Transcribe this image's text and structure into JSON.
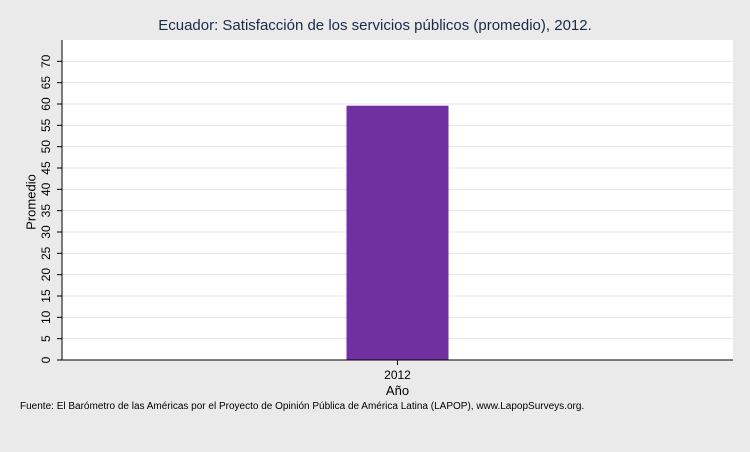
{
  "chart_data": {
    "type": "bar",
    "title": "Ecuador: Satisfacción de los servicios públicos (promedio), 2012.",
    "categories": [
      "2012"
    ],
    "values": [
      59.6
    ],
    "xlabel": "Año",
    "ylabel": "Promedio",
    "ylim": [
      0,
      75
    ],
    "yticks": [
      0,
      5,
      10,
      15,
      20,
      25,
      30,
      35,
      40,
      45,
      50,
      55,
      60,
      65,
      70
    ],
    "grid": true,
    "bar_color": "#7030a0",
    "source": "Fuente: El Barómetro de las Américas por el Proyecto de Opinión Pública de América Latina (LAPOP), www.LapopSurveys.org."
  },
  "colors": {
    "background": "#eaeaea",
    "plot_background": "#ffffff",
    "gridline": "#e6e6e6",
    "title": "#1a2a4a"
  }
}
